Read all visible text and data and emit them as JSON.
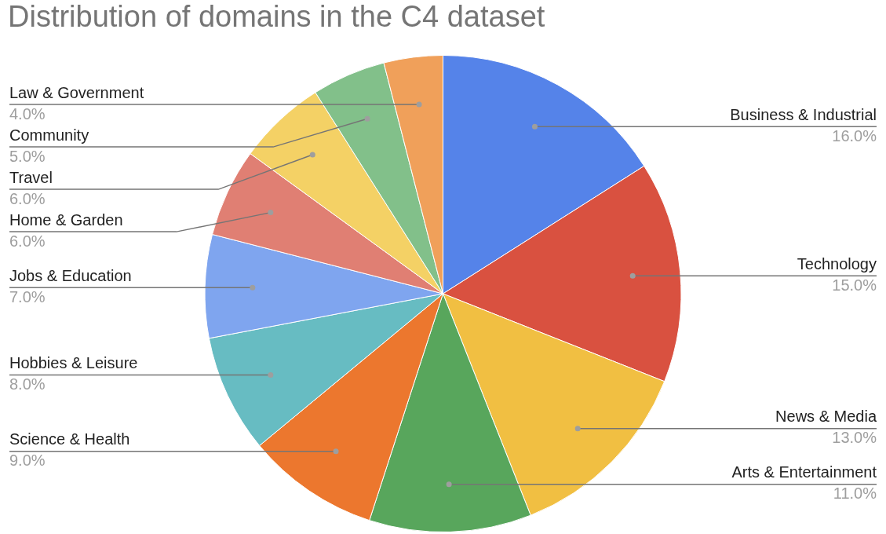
{
  "chart_data": {
    "type": "pie",
    "title": "Distribution of domains in the C4 dataset",
    "categories": [
      "Business & Industrial",
      "Technology",
      "News & Media",
      "Arts & Entertainment",
      "Science & Health",
      "Hobbies & Leisure",
      "Jobs & Education",
      "Home & Garden",
      "Travel",
      "Community",
      "Law & Government"
    ],
    "values": [
      16,
      15,
      13,
      11,
      9,
      8,
      7,
      6,
      6,
      5,
      4
    ],
    "value_labels": [
      "16.0%",
      "15.0%",
      "13.0%",
      "11.0%",
      "9.0%",
      "8.0%",
      "7.0%",
      "6.0%",
      "6.0%",
      "5.0%",
      "4.0%"
    ],
    "colors": [
      "#5583e9",
      "#d95140",
      "#f1bf42",
      "#58a65c",
      "#ec772e",
      "#67bcc2",
      "#7fa5ef",
      "#e07f73",
      "#f4d165",
      "#82c08a",
      "#f0a05a"
    ],
    "legend": false
  }
}
